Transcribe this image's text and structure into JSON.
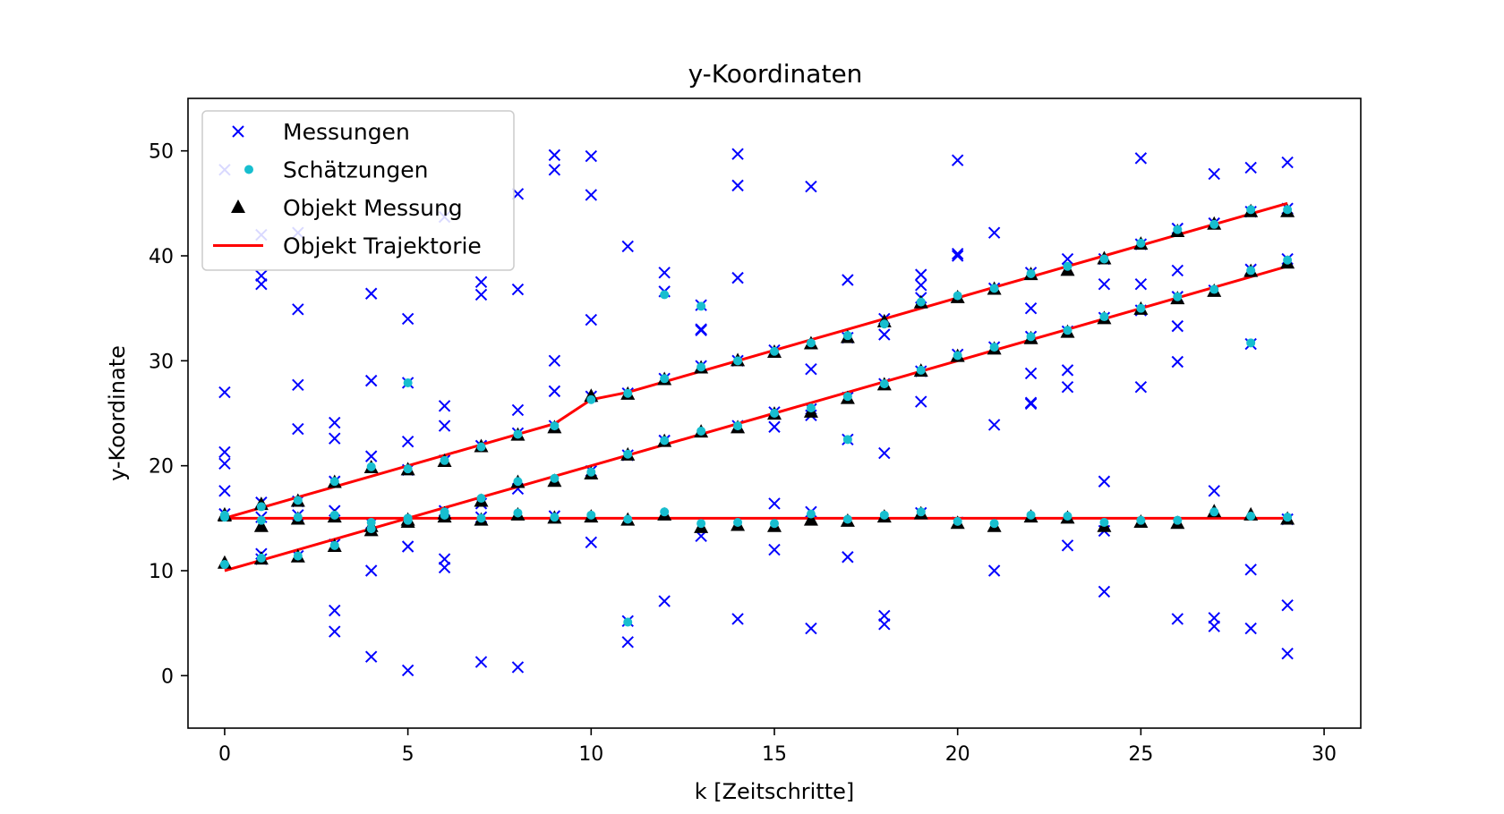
{
  "chart_data": {
    "type": "scatter",
    "title": "y-Koordinaten",
    "xlabel": "k [Zeitschritte]",
    "ylabel": "y-Koordinate",
    "xlim": [
      -1,
      31
    ],
    "ylim": [
      -5,
      55
    ],
    "xticks": [
      0,
      5,
      10,
      15,
      20,
      25,
      30
    ],
    "yticks": [
      0,
      10,
      20,
      30,
      40,
      50
    ],
    "grid": false,
    "legend_position": "top-left",
    "legend": [
      {
        "label": "Messungen",
        "marker": "x",
        "color": "#0000ff"
      },
      {
        "label": "Schätzungen",
        "marker": "dot",
        "color": "#17becf"
      },
      {
        "label": "Objekt Messung",
        "marker": "triangle",
        "color": "#000000"
      },
      {
        "label": "Objekt Trajektorie",
        "marker": "line",
        "color": "#ff0000"
      }
    ],
    "trajectories": [
      {
        "name": "Objekt Trajektorie",
        "x": [
          0,
          1,
          2,
          3,
          4,
          5,
          6,
          7,
          8,
          9,
          10,
          11,
          12,
          13,
          14,
          15,
          16,
          17,
          18,
          19,
          20,
          21,
          22,
          23,
          24,
          25,
          26,
          27,
          28,
          29
        ],
        "y": [
          15,
          16,
          17,
          18,
          19,
          20,
          21,
          22,
          23,
          24,
          26.3,
          27,
          28,
          29,
          30,
          31,
          32,
          33,
          34,
          35,
          36,
          37,
          38,
          39,
          40,
          41,
          42,
          43,
          44,
          45
        ]
      },
      {
        "name": "Objekt Trajektorie",
        "x": [
          0,
          1,
          2,
          3,
          4,
          5,
          6,
          7,
          8,
          9,
          10,
          11,
          12,
          13,
          14,
          15,
          16,
          17,
          18,
          19,
          20,
          21,
          22,
          23,
          24,
          25,
          26,
          27,
          28,
          29
        ],
        "y": [
          10,
          11,
          12,
          13,
          14,
          15,
          16,
          17,
          18,
          19,
          20,
          21,
          22,
          23,
          24,
          25,
          26,
          27,
          28,
          29,
          30,
          31,
          32,
          33,
          34,
          35,
          36,
          37,
          38,
          39
        ]
      },
      {
        "name": "Objekt Trajektorie",
        "x": [
          0,
          29
        ],
        "y": [
          15,
          15
        ]
      }
    ],
    "object_measurements": {
      "name": "Objekt Messung",
      "x": [
        0,
        1,
        2,
        3,
        4,
        5,
        6,
        7,
        8,
        9,
        10,
        11,
        12,
        13,
        14,
        15,
        16,
        17,
        18,
        19,
        20,
        21,
        22,
        23,
        24,
        25,
        26,
        27,
        28,
        29,
        0,
        1,
        2,
        3,
        4,
        5,
        6,
        7,
        8,
        9,
        10,
        11,
        12,
        13,
        14,
        15,
        16,
        17,
        18,
        19,
        20,
        21,
        22,
        23,
        24,
        25,
        26,
        27,
        28,
        29,
        0,
        1,
        2,
        3,
        4,
        5,
        6,
        7,
        8,
        9,
        10,
        11,
        12,
        13,
        14,
        15,
        16,
        17,
        18,
        19,
        20,
        21,
        22,
        23,
        24,
        25,
        26,
        27,
        28,
        29
      ],
      "y": [
        15.3,
        16.3,
        16.6,
        18.4,
        19.8,
        19.6,
        20.4,
        21.8,
        22.9,
        23.6,
        26.6,
        26.8,
        28.2,
        29.3,
        30,
        30.8,
        31.6,
        32.2,
        33.7,
        35.5,
        36,
        36.8,
        38.2,
        38.6,
        39.7,
        41.1,
        42.3,
        43,
        44.2,
        44.2,
        10.7,
        11.1,
        11.3,
        12.3,
        13.8,
        14.6,
        15.1,
        16.6,
        18.4,
        18.5,
        19.2,
        21,
        22.3,
        23.2,
        23.6,
        24.9,
        25.1,
        26.4,
        27.7,
        29,
        30.4,
        31.1,
        32.1,
        32.7,
        34,
        34.9,
        35.9,
        36.6,
        38.5,
        39.3,
        15.2,
        14.2,
        14.9,
        15.1,
        14.2,
        14.8,
        15.4,
        14.8,
        15.3,
        15,
        15.1,
        14.8,
        15.3,
        14.1,
        14.3,
        14.2,
        14.8,
        14.7,
        15.1,
        15.4,
        14.5,
        14.2,
        15.1,
        15,
        14.2,
        14.6,
        14.5,
        15.6,
        15.3,
        14.9
      ]
    },
    "estimates": {
      "name": "Schätzungen",
      "x": [
        0,
        1,
        2,
        3,
        4,
        5,
        6,
        7,
        8,
        9,
        10,
        11,
        12,
        13,
        14,
        15,
        16,
        17,
        18,
        19,
        20,
        21,
        22,
        23,
        24,
        25,
        26,
        27,
        28,
        29,
        0,
        1,
        2,
        3,
        4,
        5,
        6,
        7,
        8,
        9,
        10,
        11,
        12,
        13,
        14,
        15,
        16,
        17,
        18,
        19,
        20,
        21,
        22,
        23,
        24,
        25,
        26,
        27,
        28,
        29,
        0,
        1,
        2,
        3,
        4,
        5,
        6,
        7,
        8,
        9,
        10,
        11,
        12,
        13,
        14,
        15,
        16,
        17,
        18,
        19,
        20,
        21,
        22,
        23,
        24,
        25,
        26,
        27,
        28,
        29,
        5,
        11,
        12,
        13,
        17,
        28
      ],
      "y": [
        15.3,
        16.1,
        16.7,
        18.5,
        19.9,
        19.7,
        20.5,
        21.8,
        23,
        23.8,
        26.3,
        26.9,
        28.3,
        29.4,
        30,
        30.9,
        31.7,
        32.4,
        33.5,
        35.6,
        36.2,
        36.9,
        38.3,
        39,
        39.7,
        41.2,
        42.5,
        43,
        44.4,
        44.4,
        10.6,
        11.2,
        11.4,
        12.4,
        14,
        14.8,
        15.3,
        16.9,
        18.5,
        18.8,
        19.4,
        21.1,
        22.4,
        23.3,
        23.8,
        25,
        25.5,
        26.6,
        27.8,
        29.1,
        30.5,
        31.3,
        32.3,
        32.9,
        34.2,
        35,
        36.1,
        36.8,
        38.6,
        39.6,
        15.1,
        14.8,
        15.1,
        15.3,
        14.6,
        15,
        15.6,
        15,
        15.5,
        15.1,
        15.3,
        14.9,
        15.6,
        14.5,
        14.6,
        14.5,
        15.4,
        14.9,
        15.3,
        15.6,
        14.7,
        14.5,
        15.3,
        15.2,
        14.6,
        14.8,
        14.8,
        15.6,
        15.2,
        15.1,
        27.9,
        5.1,
        36.3,
        35.2,
        22.5,
        31.7
      ]
    },
    "measurements": {
      "name": "Messungen",
      "x": [
        0,
        0,
        0,
        0,
        0,
        0,
        1,
        1,
        1,
        1,
        1,
        1,
        1,
        2,
        2,
        2,
        2,
        2,
        2,
        2,
        3,
        3,
        3,
        3,
        3,
        3,
        3,
        4,
        4,
        4,
        4,
        4,
        4,
        5,
        5,
        5,
        5,
        5,
        5,
        6,
        6,
        6,
        6,
        6,
        6,
        6,
        7,
        7,
        7,
        7,
        7,
        7,
        8,
        8,
        8,
        8,
        8,
        8,
        9,
        9,
        9,
        9,
        9,
        9,
        10,
        10,
        10,
        10,
        10,
        10,
        11,
        11,
        11,
        11,
        11,
        12,
        12,
        12,
        12,
        12,
        13,
        13,
        13,
        13,
        13,
        14,
        14,
        14,
        14,
        14,
        14,
        15,
        15,
        15,
        15,
        15,
        16,
        16,
        16,
        16,
        16,
        16,
        17,
        17,
        17,
        17,
        17,
        18,
        18,
        18,
        18,
        18,
        18,
        19,
        19,
        19,
        19,
        19,
        19,
        20,
        20,
        20,
        20,
        20,
        21,
        21,
        21,
        21,
        21,
        22,
        22,
        22,
        22,
        22,
        22,
        23,
        23,
        23,
        23,
        23,
        23,
        24,
        24,
        24,
        24,
        24,
        24,
        25,
        25,
        25,
        25,
        25,
        26,
        26,
        26,
        26,
        26,
        26,
        27,
        27,
        27,
        27,
        27,
        27,
        28,
        28,
        28,
        28,
        28,
        28,
        29,
        29,
        29,
        29,
        29,
        29
      ],
      "y": [
        48.2,
        27,
        21.3,
        20.2,
        17.6,
        15.4,
        42,
        38.1,
        37.3,
        16.5,
        15.1,
        11.6,
        11.1,
        42.2,
        34.9,
        27.7,
        23.5,
        16.6,
        15.3,
        11.4,
        24.1,
        22.6,
        18.5,
        15.7,
        12.5,
        6.2,
        4.2,
        36.4,
        28.1,
        20.9,
        14.5,
        10,
        1.8,
        34,
        27.9,
        22.3,
        19.6,
        12.3,
        0.5,
        43.7,
        25.7,
        23.8,
        20.5,
        15.7,
        11.1,
        10.3,
        37.5,
        36.3,
        21.9,
        16.4,
        15.1,
        1.3,
        45.9,
        36.8,
        25.3,
        23.1,
        17.8,
        0.8,
        49.6,
        48.2,
        30,
        27.1,
        23.8,
        15.2,
        49.5,
        45.8,
        33.9,
        26.6,
        19.5,
        12.7,
        40.9,
        26.9,
        21,
        5.2,
        3.2,
        38.4,
        36.6,
        28.3,
        22.4,
        7.1,
        35.3,
        32.9,
        33,
        29.5,
        13.3,
        49.7,
        46.7,
        37.9,
        30,
        23.8,
        5.4,
        31,
        25.1,
        23.7,
        16.4,
        12,
        46.6,
        29.2,
        25.4,
        24.8,
        15.6,
        4.5,
        37.7,
        32.2,
        26.5,
        22.5,
        11.3,
        34,
        32.5,
        27.8,
        21.2,
        5.7,
        4.9,
        38.2,
        37.2,
        36,
        29,
        26.1,
        15.5,
        49.1,
        40.2,
        40,
        30.6,
        14.6,
        42.2,
        36.9,
        31.3,
        23.9,
        10,
        38.4,
        35,
        32.3,
        28.8,
        26,
        25.9,
        39.7,
        38.8,
        32.8,
        29.1,
        27.5,
        12.4,
        39.7,
        37.3,
        34.1,
        18.5,
        13.8,
        8,
        49.3,
        41.1,
        37.3,
        34.8,
        27.5,
        42.6,
        38.6,
        36.1,
        33.3,
        29.9,
        5.4,
        47.8,
        43.1,
        36.7,
        17.6,
        5.5,
        4.7,
        48.4,
        44.2,
        38.7,
        31.6,
        10.1,
        4.5,
        48.9,
        44.5,
        39.7,
        14.9,
        6.7,
        2.1
      ]
    }
  }
}
